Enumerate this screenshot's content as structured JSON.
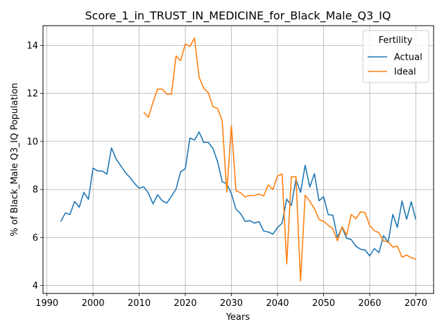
{
  "chart_data": {
    "type": "line",
    "title": "Score_1_in_TRUST_IN_MEDICINE_for_Black_Male_Q3_IQ",
    "xlabel": "Years",
    "ylabel": "% of Black_Male Q3_IQ Population",
    "xlim": [
      1989.15,
      2073.85
    ],
    "ylim": [
      3.67,
      14.82
    ],
    "xticks": [
      1990,
      2000,
      2010,
      2020,
      2030,
      2040,
      2050,
      2060,
      2070
    ],
    "yticks": [
      4,
      6,
      8,
      10,
      12,
      14
    ],
    "grid": true,
    "legend": {
      "title": "Fertility",
      "placement": "top-right"
    },
    "series": [
      {
        "name": "Actual",
        "color": "#1f77b4",
        "x": [
          1993,
          1994,
          1995,
          1996,
          1997,
          1998,
          1999,
          2000,
          2001,
          2002,
          2003,
          2004,
          2005,
          2006,
          2007,
          2008,
          2009,
          2010,
          2011,
          2012,
          2013,
          2014,
          2015,
          2016,
          2017,
          2018,
          2019,
          2020,
          2021,
          2022,
          2023,
          2024,
          2025,
          2026,
          2027,
          2028,
          2029,
          2030,
          2031,
          2032,
          2033,
          2034,
          2035,
          2036,
          2037,
          2038,
          2039,
          2040,
          2041,
          2042,
          2043,
          2044,
          2045,
          2046,
          2047,
          2048,
          2049,
          2050,
          2051,
          2052,
          2053,
          2054,
          2055,
          2056,
          2057,
          2058,
          2059,
          2060,
          2061,
          2062,
          2063,
          2064,
          2065,
          2066,
          2067,
          2068,
          2069,
          2070
        ],
        "y": [
          6.67,
          7.02,
          6.96,
          7.5,
          7.26,
          7.88,
          7.59,
          8.89,
          8.77,
          8.77,
          8.64,
          9.73,
          9.27,
          8.99,
          8.71,
          8.5,
          8.25,
          8.05,
          8.11,
          7.85,
          7.4,
          7.78,
          7.53,
          7.43,
          7.72,
          8.02,
          8.74,
          8.86,
          10.14,
          10.06,
          10.39,
          9.96,
          9.96,
          9.71,
          9.16,
          8.33,
          8.23,
          7.82,
          7.18,
          6.99,
          6.67,
          6.7,
          6.6,
          6.66,
          6.27,
          6.23,
          6.14,
          6.41,
          6.6,
          7.6,
          7.33,
          8.42,
          7.88,
          9.01,
          8.1,
          8.66,
          7.53,
          7.7,
          6.95,
          6.93,
          6.01,
          6.42,
          5.97,
          5.91,
          5.64,
          5.51,
          5.48,
          5.23,
          5.54,
          5.37,
          6.08,
          5.8,
          6.96,
          6.42,
          7.52,
          6.76,
          7.49,
          6.75
        ]
      },
      {
        "name": "Ideal",
        "color": "#ff7f0e",
        "x": [
          2011,
          2012,
          2013,
          2014,
          2015,
          2016,
          2017,
          2018,
          2019,
          2020,
          2021,
          2022,
          2023,
          2024,
          2025,
          2026,
          2027,
          2028,
          2029,
          2030,
          2031,
          2032,
          2033,
          2034,
          2035,
          2036,
          2037,
          2038,
          2039,
          2040,
          2041,
          2042,
          2043,
          2044,
          2045,
          2046,
          2047,
          2048,
          2049,
          2050,
          2051,
          2052,
          2053,
          2054,
          2055,
          2056,
          2057,
          2058,
          2059,
          2060,
          2061,
          2062,
          2063,
          2064,
          2065,
          2066,
          2067,
          2068,
          2069,
          2070
        ],
        "y": [
          11.22,
          11.01,
          11.63,
          12.18,
          12.18,
          11.97,
          11.97,
          13.56,
          13.36,
          14.06,
          13.96,
          14.3,
          12.67,
          12.21,
          12.03,
          11.45,
          11.37,
          10.87,
          7.89,
          10.66,
          7.95,
          7.86,
          7.69,
          7.75,
          7.75,
          7.81,
          7.73,
          8.19,
          8.0,
          8.56,
          8.65,
          4.9,
          8.52,
          8.53,
          4.19,
          7.76,
          7.51,
          7.2,
          6.75,
          6.67,
          6.51,
          6.37,
          5.86,
          6.45,
          6.1,
          6.96,
          6.78,
          7.07,
          7.03,
          6.5,
          6.28,
          6.2,
          5.85,
          5.82,
          5.6,
          5.64,
          5.18,
          5.27,
          5.16,
          5.1
        ]
      }
    ]
  }
}
